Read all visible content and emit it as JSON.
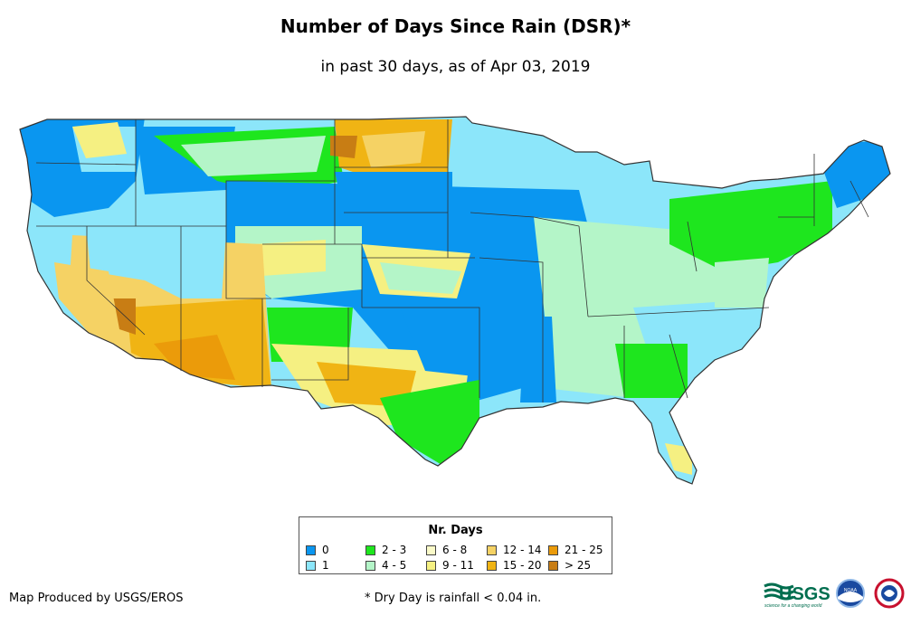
{
  "title": "Number of Days Since Rain (DSR)*",
  "subtitle": "in past 30 days, as of Apr 03, 2019",
  "legend": {
    "title": "Nr. Days",
    "items": [
      {
        "label": "0",
        "color": "#0a96f0"
      },
      {
        "label": "1",
        "color": "#8ce6fa"
      },
      {
        "label": "2 - 3",
        "color": "#1ee61e"
      },
      {
        "label": "4 - 5",
        "color": "#b4f5c8"
      },
      {
        "label": "6 - 8",
        "color": "#fafac8"
      },
      {
        "label": "9 - 11",
        "color": "#f5f082"
      },
      {
        "label": "12 - 14",
        "color": "#f5d264"
      },
      {
        "label": "15 - 20",
        "color": "#f0b414"
      },
      {
        "label": "21 - 25",
        "color": "#eb9b0a"
      },
      {
        "label": "> 25",
        "color": "#c87d14"
      }
    ]
  },
  "credit": "Map Produced by USGS/EROS",
  "footnote": "* Dry Day is rainfall < 0.04 in.",
  "logos": {
    "usgs_text": "USGS",
    "usgs_tagline": "science for a changing world",
    "noaa_text": "NOAA"
  }
}
